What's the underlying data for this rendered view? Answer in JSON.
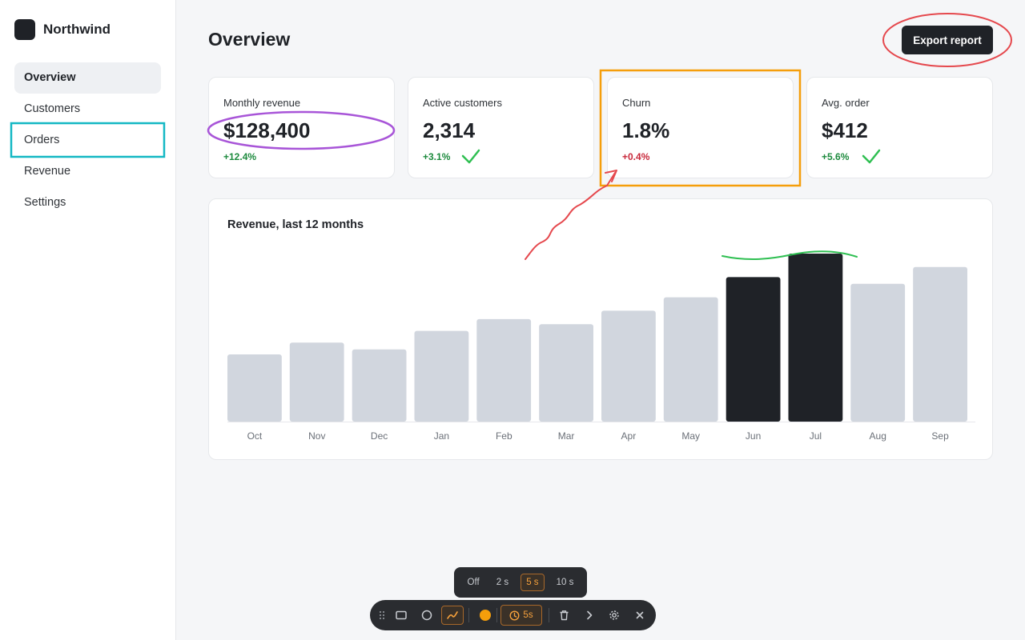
{
  "brand": {
    "name": "Northwind"
  },
  "sidebar": {
    "items": [
      {
        "label": "Overview",
        "active": true
      },
      {
        "label": "Customers"
      },
      {
        "label": "Orders"
      },
      {
        "label": "Revenue"
      },
      {
        "label": "Settings"
      }
    ]
  },
  "header": {
    "title": "Overview",
    "export_label": "Export report"
  },
  "kpis": [
    {
      "label": "Monthly revenue",
      "value": "$128,400",
      "delta": "+12.4%",
      "trend": "up"
    },
    {
      "label": "Active customers",
      "value": "2,314",
      "delta": "+3.1%",
      "trend": "up"
    },
    {
      "label": "Churn",
      "value": "1.8%",
      "delta": "+0.4%",
      "trend": "down"
    },
    {
      "label": "Avg. order",
      "value": "$412",
      "delta": "+5.6%",
      "trend": "up"
    }
  ],
  "chart_data": {
    "type": "bar",
    "title": "Revenue, last 12 months",
    "categories": [
      "Oct",
      "Nov",
      "Dec",
      "Jan",
      "Feb",
      "Mar",
      "Apr",
      "May",
      "Jun",
      "Jul",
      "Aug",
      "Sep"
    ],
    "values": [
      40,
      47,
      43,
      54,
      61,
      58,
      66,
      74,
      86,
      100,
      82,
      92
    ],
    "highlighted": [
      "Jun",
      "Jul"
    ],
    "ylim": [
      0,
      100
    ],
    "grid": false,
    "bar_color": "#d1d6de",
    "highlight_color": "#1f2227"
  },
  "timer": {
    "options": [
      "Off",
      "2 s",
      "5 s",
      "10 s"
    ],
    "selected": "5 s"
  },
  "toolbar": {
    "tools": [
      "drag-handle-icon",
      "rectangle-icon",
      "circle-icon",
      "freehand-icon",
      "color-icon",
      "timer-icon",
      "trash-icon",
      "chevron-right-icon",
      "gear-icon",
      "close-icon"
    ],
    "active_color": "#f59e0b",
    "timer_label": "5s"
  },
  "colors": {
    "accent": "#1f2227",
    "positive": "#1c8a3d",
    "negative": "#c8283a"
  }
}
